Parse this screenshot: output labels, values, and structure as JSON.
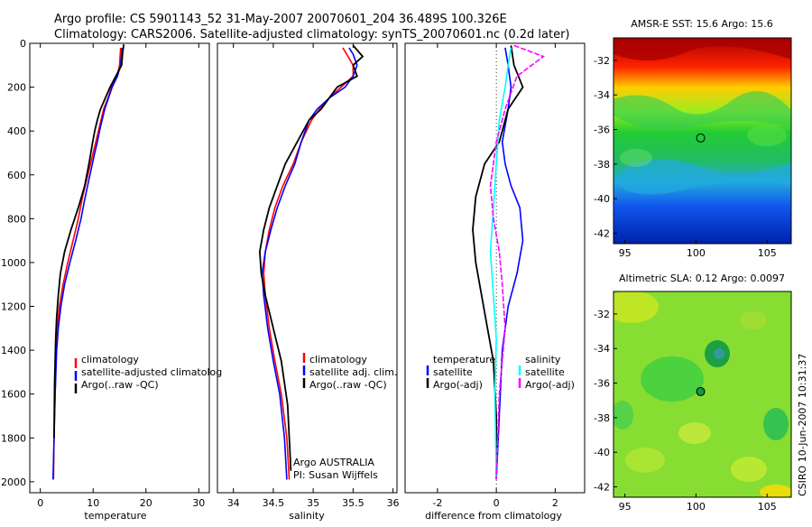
{
  "header": {
    "line1": "Argo profile: CS 5901143_52 31-May-2007 20070601_204 36.489S 100.326E",
    "line2": "Climatology: CARS2006. Satellite-adjusted climatology: synTS_20070601.nc (0.2d later)"
  },
  "colors": {
    "black": "#000000",
    "red": "#ff0000",
    "blue": "#0000ff",
    "cyan": "#00ffff",
    "magenta": "#ff00ff"
  },
  "chart_data": [
    {
      "type": "line",
      "xlabel": "temperature",
      "ylabel": "",
      "xlim": [
        -2,
        32
      ],
      "ylim": [
        2050,
        0
      ],
      "xticks": [
        0,
        10,
        20,
        30
      ],
      "yticks": [
        0,
        200,
        400,
        600,
        800,
        1000,
        1200,
        1400,
        1600,
        1800,
        2000
      ],
      "legend": [
        "climatology",
        "satellite-adjusted climatolog",
        "Argo(..raw -QC)"
      ],
      "series": [
        {
          "name": "climatology",
          "color": "red",
          "x": [
            15.2,
            15.0,
            14.5,
            13.5,
            12.8,
            12.0,
            11.5,
            11.0,
            10.5,
            10.0,
            9.0,
            8.0,
            7.2,
            6.2,
            5.2,
            4.3,
            3.6,
            3.2,
            3.0,
            2.8,
            2.6,
            2.5
          ],
          "y": [
            20,
            100,
            150,
            200,
            250,
            300,
            350,
            400,
            450,
            500,
            600,
            700,
            800,
            900,
            1000,
            1100,
            1200,
            1300,
            1400,
            1600,
            1800,
            1990
          ]
        },
        {
          "name": "satellite-adjusted climatolog",
          "color": "blue",
          "x": [
            15.5,
            15.2,
            14.6,
            13.6,
            12.9,
            12.2,
            11.7,
            11.2,
            10.8,
            10.3,
            9.4,
            8.5,
            7.7,
            6.7,
            5.6,
            4.6,
            3.9,
            3.4,
            3.1,
            2.8,
            2.6,
            2.4
          ],
          "y": [
            20,
            100,
            150,
            200,
            250,
            300,
            350,
            400,
            450,
            500,
            600,
            700,
            800,
            900,
            1000,
            1100,
            1200,
            1300,
            1400,
            1600,
            1800,
            1990
          ]
        },
        {
          "name": "Argo(..raw -QC)",
          "color": "black",
          "x": [
            15.8,
            15.6,
            15.4,
            14.3,
            13.2,
            12.3,
            11.4,
            10.8,
            10.3,
            9.9,
            9.2,
            8.4,
            7.2,
            5.8,
            4.6,
            3.8,
            3.4,
            3.1,
            2.9,
            2.7,
            2.6
          ],
          "y": [
            5,
            40,
            100,
            150,
            200,
            250,
            300,
            350,
            400,
            450,
            550,
            650,
            750,
            850,
            950,
            1050,
            1150,
            1250,
            1350,
            1550,
            1800
          ]
        }
      ],
      "annotation": []
    },
    {
      "type": "line",
      "xlabel": "salinity",
      "ylabel": "",
      "xlim": [
        33.8,
        36.05
      ],
      "ylim": [
        2050,
        0
      ],
      "xticks": [
        34,
        34.5,
        35,
        35.5,
        36
      ],
      "yticks": [],
      "legend": [
        "climatology",
        "satellite adj. clim.",
        "Argo(..raw -QC)"
      ],
      "series": [
        {
          "name": "climatology",
          "color": "red",
          "x": [
            35.37,
            35.42,
            35.5,
            35.5,
            35.35,
            35.2,
            35.08,
            34.98,
            34.85,
            34.75,
            34.62,
            34.52,
            34.45,
            34.4,
            34.38,
            34.4,
            34.45,
            34.52,
            34.6,
            34.67,
            34.7
          ],
          "y": [
            20,
            50,
            100,
            150,
            200,
            250,
            300,
            350,
            450,
            550,
            650,
            750,
            850,
            950,
            1050,
            1150,
            1300,
            1450,
            1600,
            1800,
            1990
          ]
        },
        {
          "name": "satellite adj. clim.",
          "color": "blue",
          "x": [
            35.45,
            35.5,
            35.55,
            35.5,
            35.4,
            35.2,
            35.05,
            34.95,
            34.85,
            34.77,
            34.65,
            34.55,
            34.47,
            34.4,
            34.36,
            34.38,
            34.43,
            34.5,
            34.58,
            34.64,
            34.67
          ],
          "y": [
            20,
            50,
            100,
            150,
            200,
            250,
            300,
            350,
            450,
            550,
            650,
            750,
            850,
            950,
            1050,
            1150,
            1300,
            1450,
            1600,
            1800,
            1990
          ]
        },
        {
          "name": "Argo(..raw -QC)",
          "color": "black",
          "x": [
            35.5,
            35.62,
            35.5,
            35.55,
            35.3,
            35.2,
            35.1,
            34.95,
            34.8,
            34.65,
            34.55,
            34.45,
            34.38,
            34.33,
            34.35,
            34.4,
            34.5,
            34.6,
            34.68,
            34.72
          ],
          "y": [
            10,
            60,
            100,
            150,
            200,
            250,
            300,
            350,
            450,
            550,
            650,
            750,
            850,
            950,
            1050,
            1150,
            1300,
            1450,
            1650,
            1950
          ]
        }
      ],
      "annotation": [
        "Argo AUSTRALIA",
        "PI: Susan Wijffels"
      ]
    },
    {
      "type": "line",
      "xlabel": "difference from climatology",
      "ylabel": "",
      "xlim": [
        -3.1,
        3.0
      ],
      "ylim": [
        2050,
        0
      ],
      "xticks": [
        -2,
        0,
        2
      ],
      "yticks": [],
      "legend_titles": [
        "temperature",
        "salinity"
      ],
      "legend": [
        "satellite",
        "Argo(-adj)",
        "satellite",
        "Argo(-adj)"
      ],
      "series": [
        {
          "name": "satellite",
          "group": "temperature",
          "color": "blue",
          "x": [
            0.3,
            0.4,
            0.5,
            0.4,
            0.2,
            0.3,
            0.5,
            0.8,
            0.9,
            0.7,
            0.4,
            0.2,
            0.1,
            0.0
          ],
          "y": [
            20,
            100,
            200,
            300,
            450,
            550,
            650,
            750,
            900,
            1050,
            1200,
            1400,
            1700,
            1990
          ]
        },
        {
          "name": "Argo(-adj)",
          "group": "temperature",
          "color": "black",
          "x": [
            0.5,
            0.6,
            0.9,
            0.4,
            0.1,
            -0.4,
            -0.7,
            -0.8,
            -0.7,
            -0.5,
            -0.3,
            -0.1,
            0.0,
            0.0
          ],
          "y": [
            10,
            100,
            200,
            300,
            450,
            550,
            700,
            850,
            1000,
            1150,
            1300,
            1450,
            1700,
            1990
          ]
        },
        {
          "name": "satellite",
          "group": "salinity",
          "color": "cyan",
          "x": [
            0.5,
            0.4,
            0.3,
            0.1,
            0.0,
            -0.1,
            -0.2,
            -0.1,
            0.0,
            -0.05,
            0.0
          ],
          "y": [
            20,
            100,
            200,
            350,
            550,
            750,
            950,
            1150,
            1350,
            1600,
            1990
          ]
        },
        {
          "name": "Argo(-adj)",
          "group": "salinity",
          "color": "magenta",
          "x": [
            0.6,
            1.6,
            0.7,
            0.3,
            0.0,
            -0.2,
            -0.1,
            0.1,
            0.2,
            0.3,
            0.1,
            0.0
          ],
          "y": [
            10,
            60,
            150,
            300,
            450,
            650,
            800,
            950,
            1100,
            1300,
            1600,
            1990
          ]
        }
      ],
      "annotation": []
    },
    {
      "type": "heatmap",
      "title": "AMSR-E SST: 15.6 Argo: 15.6",
      "xlim": [
        94.2,
        106.7
      ],
      "ylim": [
        -42.6,
        -30.7
      ],
      "xticks": [
        95,
        100,
        105
      ],
      "yticks": [
        -32,
        -34,
        -36,
        -38,
        -40,
        -42
      ],
      "marker": {
        "lon": 100.326,
        "lat": -36.489
      }
    },
    {
      "type": "heatmap",
      "title": "Altimetric SLA: 0.12 Argo: 0.0097",
      "xlim": [
        94.2,
        106.7
      ],
      "ylim": [
        -42.6,
        -30.7
      ],
      "xticks": [
        95,
        100,
        105
      ],
      "yticks": [
        -32,
        -34,
        -36,
        -38,
        -40,
        -42
      ],
      "marker": {
        "lon": 100.326,
        "lat": -36.489
      }
    }
  ],
  "footer": {
    "credit": "CSIRO 10-Jun-2007 10:31:37"
  }
}
